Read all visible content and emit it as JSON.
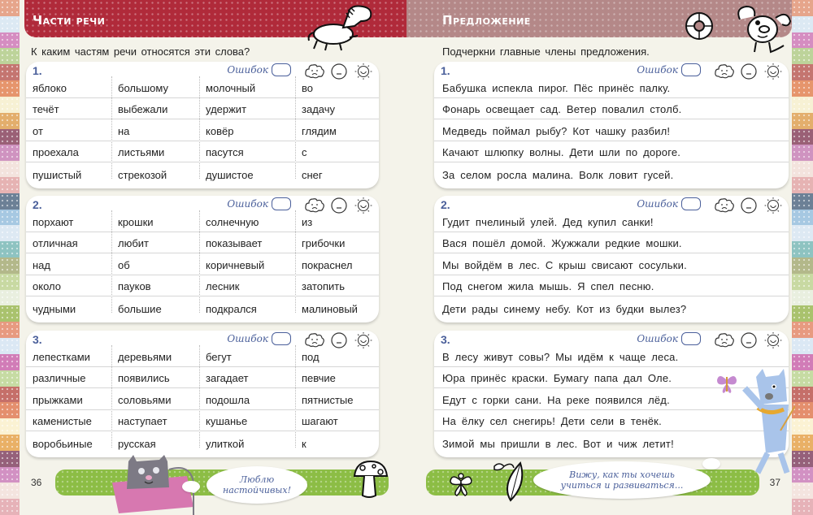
{
  "colors": {
    "left_header": "#b02a3a",
    "right_header": "#b48888",
    "card_accent": "#4a5f9a",
    "footer_green": "#8cbd45",
    "page_bg": "#f4f3ea"
  },
  "edge_stripes": [
    "#e6a58b",
    "#dce9f3",
    "#d58dc1",
    "#bdd39a",
    "#c47570",
    "#e6956c",
    "#f7f1d4",
    "#e3ae6c",
    "#9a6076",
    "#cf93c0",
    "#f3e3dd",
    "#e6b3b3",
    "#6c8096",
    "#a6c8e2",
    "#dde9f3",
    "#8ec3c1",
    "#b3b88a",
    "#c8d9a2",
    "#e9efdf",
    "#a9c26d",
    "#e79a80",
    "#dbe8f4",
    "#d17cb7",
    "#c6dba3",
    "#c56f69",
    "#e48f6d",
    "#fbf2d3",
    "#e9b066",
    "#95607a",
    "#d291c3",
    "#f4e4df",
    "#e6b2b8"
  ],
  "left_page": {
    "header_title": "Части речи",
    "instruction": "К каким частям речи относятся эти слова?",
    "page_number": "36",
    "bubble_text_1": "Люблю",
    "bubble_text_2": "настойчивых!",
    "exercises": [
      {
        "number": "1.",
        "errors_label": "Ошибок",
        "rows": [
          [
            "яблоко",
            "большому",
            "молочный",
            "во"
          ],
          [
            "течёт",
            "выбежали",
            "удержит",
            "задачу"
          ],
          [
            "от",
            "на",
            "ковёр",
            "глядим"
          ],
          [
            "проехала",
            "листьями",
            "пасутся",
            "с"
          ],
          [
            "пушистый",
            "стрекозой",
            "душистое",
            "снег"
          ]
        ]
      },
      {
        "number": "2.",
        "errors_label": "Ошибок",
        "rows": [
          [
            "порхают",
            "крошки",
            "солнечную",
            "из"
          ],
          [
            "отличная",
            "любит",
            "показывает",
            "грибочки"
          ],
          [
            "над",
            "об",
            "коричневый",
            "покраснел"
          ],
          [
            "около",
            "пауков",
            "лесник",
            "затопить"
          ],
          [
            "чудными",
            "большие",
            "подкрался",
            "малиновый"
          ]
        ]
      },
      {
        "number": "3.",
        "errors_label": "Ошибок",
        "rows": [
          [
            "лепестками",
            "деревьями",
            "бегут",
            "под"
          ],
          [
            "различные",
            "появились",
            "загадает",
            "певчие"
          ],
          [
            "прыжками",
            "соловьями",
            "подошла",
            "пятнистые"
          ],
          [
            "каменистые",
            "наступает",
            "кушанье",
            "шагают"
          ],
          [
            "воробьиные",
            "русская",
            "улиткой",
            "к"
          ]
        ]
      }
    ]
  },
  "right_page": {
    "header_title": "Предложение",
    "instruction": "Подчеркни главные члены предложения.",
    "page_number": "37",
    "bubble_text_1": "Вижу, как ты хочешь",
    "bubble_text_2": "учиться и развиваться...",
    "exercises": [
      {
        "number": "1.",
        "errors_label": "Ошибок",
        "sentences": [
          "Бабушка испекла пирог. Пёс принёс палку.",
          "Фонарь освещает сад. Ветер повалил столб.",
          "Медведь поймал рыбу? Кот чашку разбил!",
          "Качают шлюпку волны. Дети шли по дороге.",
          "За селом росла малина. Волк ловит гусей."
        ]
      },
      {
        "number": "2.",
        "errors_label": "Ошибок",
        "sentences": [
          "Гудит пчелиный улей. Дед купил санки!",
          "Вася пошёл домой. Жужжали редкие мошки.",
          "Мы войдём в лес. С крыш свисают сосульки.",
          "Под снегом жила мышь. Я спел песню.",
          "Дети рады синему небу. Кот из будки вылез?"
        ]
      },
      {
        "number": "3.",
        "errors_label": "Ошибок",
        "sentences": [
          "В лесу живут совы? Мы идём к чаще леса.",
          "Юра принёс краски. Бумагу папа дал Оле.",
          "Едут с горки сани. На реке появился лёд.",
          "На ёлку сел снегирь! Дети сели в тенёк.",
          "Зимой мы пришли в лес. Вот и чиж летит!"
        ]
      }
    ]
  }
}
